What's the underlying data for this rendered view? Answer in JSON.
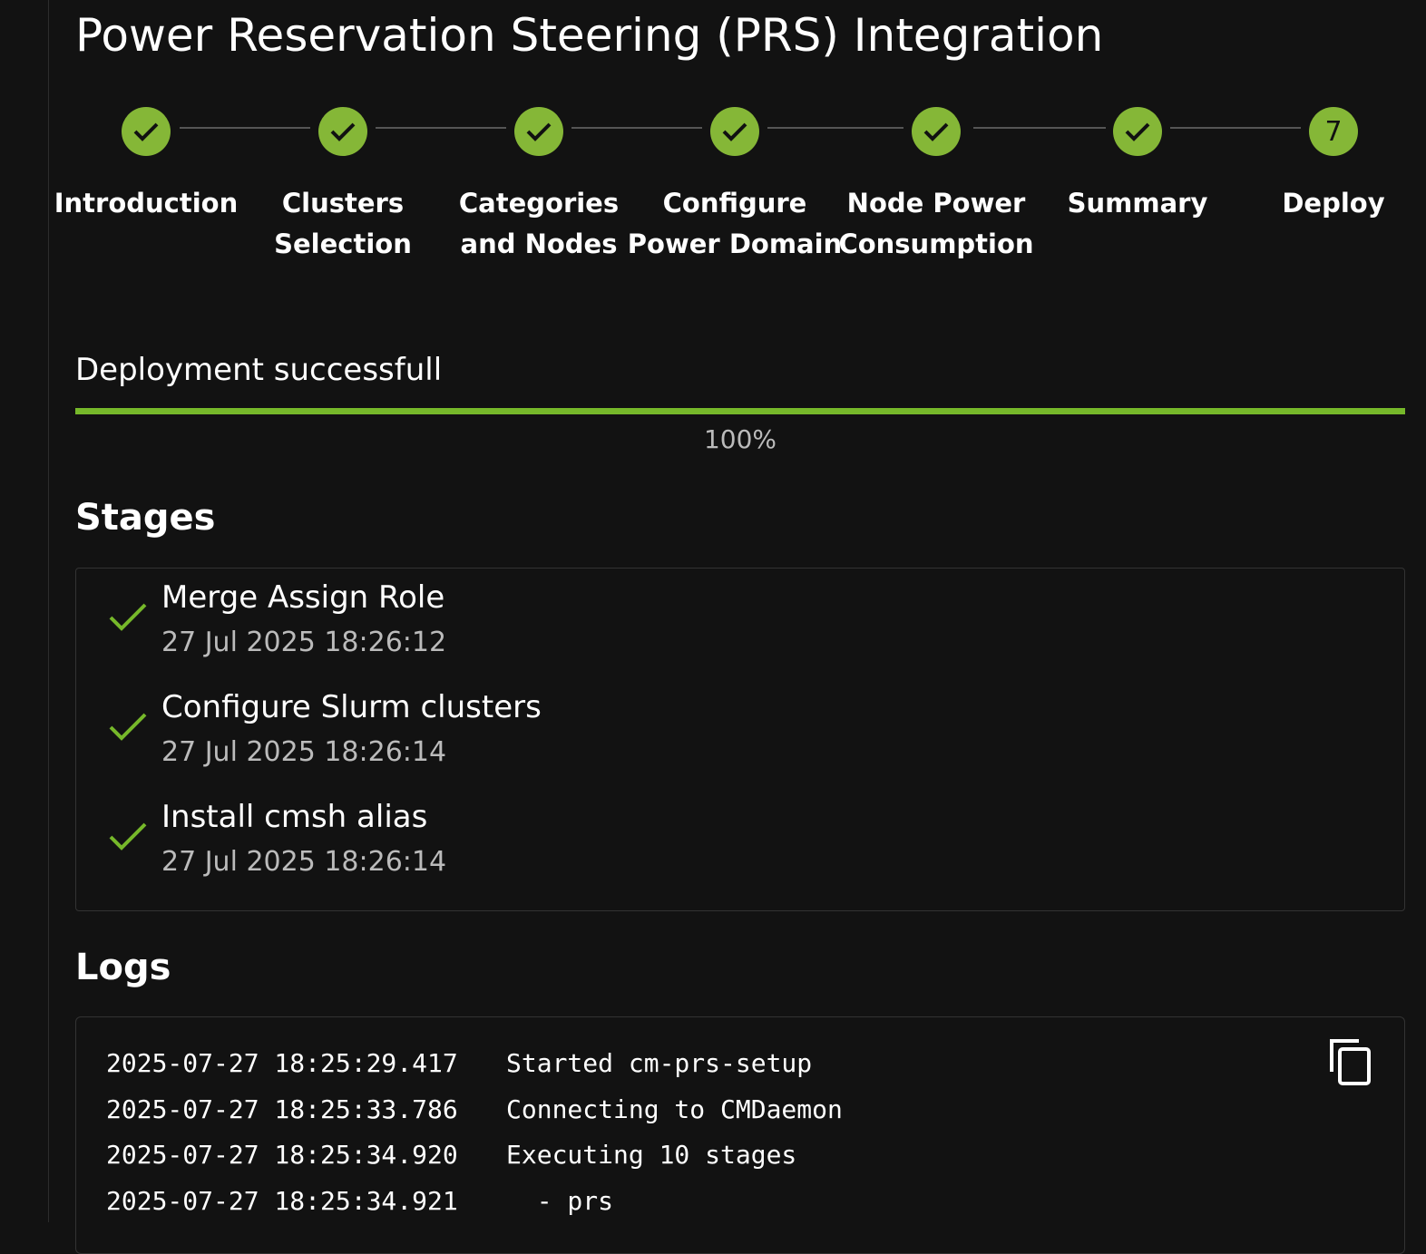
{
  "title": "Power Reservation Steering (PRS) Integration",
  "colors": {
    "accent": "#85b737",
    "background": "#121212"
  },
  "steps": [
    {
      "label": "Introduction",
      "state": "done"
    },
    {
      "label": "Clusters Selection",
      "state": "done"
    },
    {
      "label": "Categories and Nodes",
      "state": "done"
    },
    {
      "label": "Configure Power Domain",
      "state": "done"
    },
    {
      "label": "Node Power Consumption",
      "state": "done"
    },
    {
      "label": "Summary",
      "state": "done"
    },
    {
      "label": "Deploy",
      "state": "current",
      "number": "7"
    }
  ],
  "deployment": {
    "status": "Deployment successfull",
    "progress_percent": 100,
    "progress_label": "100%"
  },
  "stages": {
    "heading": "Stages",
    "items": [
      {
        "title": "Merge Assign Role",
        "date": "27 Jul 2025 18:26:12",
        "icon": "check-icon"
      },
      {
        "title": "Configure Slurm clusters",
        "date": "27 Jul 2025 18:26:14",
        "icon": "check-icon"
      },
      {
        "title": "Install cmsh alias",
        "date": "27 Jul 2025 18:26:14",
        "icon": "check-icon"
      }
    ]
  },
  "logs": {
    "heading": "Logs",
    "copy_icon": "copy-icon",
    "lines": [
      {
        "time": "2025-07-27 18:25:29.417",
        "message": "Started cm-prs-setup"
      },
      {
        "time": "2025-07-27 18:25:33.786",
        "message": "Connecting to CMDaemon"
      },
      {
        "time": "2025-07-27 18:25:34.920",
        "message": "Executing 10 stages"
      },
      {
        "time": "2025-07-27 18:25:34.921",
        "message": "  - prs"
      }
    ]
  }
}
